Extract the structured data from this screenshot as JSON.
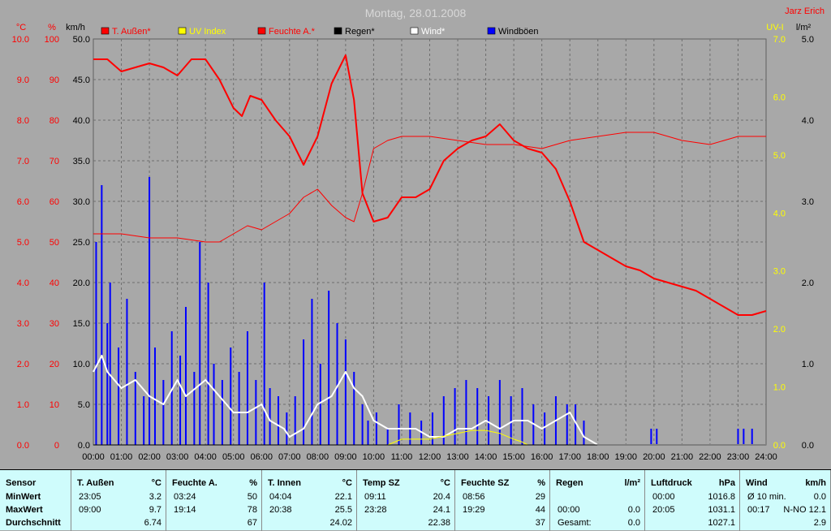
{
  "title": "Montag, 28.01.2008",
  "author": "Jarz Erich",
  "legend": [
    {
      "label": "T. Außen*",
      "color": "#ff0000",
      "text_color": "#ff0000"
    },
    {
      "label": "UV Index",
      "color": "#ffff00",
      "text_color": "#ffff00"
    },
    {
      "label": "Feuchte A.*",
      "color": "#ff0000",
      "text_color": "#ff0000"
    },
    {
      "label": "Regen*",
      "color": "#000000",
      "text_color": "#000000"
    },
    {
      "label": "Wind*",
      "color": "#ffffff",
      "text_color": "#ffffff"
    },
    {
      "label": "Windböen",
      "color": "#0000ff",
      "text_color": "#000000"
    }
  ],
  "axes": {
    "temp": {
      "unit": "°C",
      "ticks": [
        "10.0",
        "9.0",
        "8.0",
        "7.0",
        "6.0",
        "5.0",
        "4.0",
        "3.0",
        "2.0",
        "1.0",
        "0.0"
      ],
      "color": "#ff0000"
    },
    "humidity": {
      "unit": "%",
      "ticks": [
        "100",
        "90",
        "80",
        "70",
        "60",
        "50",
        "40",
        "30",
        "20",
        "10",
        "0"
      ],
      "color": "#ff0000"
    },
    "wind": {
      "unit": "km/h",
      "ticks": [
        "50.0",
        "45.0",
        "40.0",
        "35.0",
        "30.0",
        "25.0",
        "20.0",
        "15.0",
        "10.0",
        "5.0",
        "0.0"
      ],
      "color": "#000000"
    },
    "uv": {
      "unit": "UV-I",
      "ticks": [
        "7.0",
        "6.0",
        "5.0",
        "4.0",
        "3.0",
        "2.0",
        "1.0",
        "0.0"
      ],
      "color": "#ffff00"
    },
    "rain": {
      "unit": "l/m²",
      "ticks": [
        "5.0",
        "4.0",
        "3.0",
        "2.0",
        "1.0",
        "0.0"
      ],
      "color": "#000000"
    },
    "time": [
      "00:00",
      "01:00",
      "02:00",
      "03:00",
      "04:00",
      "05:00",
      "06:00",
      "07:00",
      "08:00",
      "09:00",
      "10:00",
      "11:00",
      "12:00",
      "13:00",
      "14:00",
      "15:00",
      "16:00",
      "17:00",
      "18:00",
      "19:00",
      "20:00",
      "21:00",
      "22:00",
      "23:00",
      "24:00"
    ]
  },
  "chart_data": {
    "type": "line",
    "title": "Montag, 28.01.2008",
    "x_unit": "hours",
    "xlim": [
      0,
      24
    ],
    "grid": true,
    "legend_position": "top",
    "series": [
      {
        "name": "T. Außen*",
        "axis": "°C",
        "ylim": [
          0,
          10
        ],
        "color": "#ff0000",
        "width": 2,
        "x": [
          0,
          0.5,
          1,
          1.5,
          2,
          2.5,
          3,
          3.5,
          4,
          4.5,
          5,
          5.3,
          5.6,
          6,
          6.5,
          7,
          7.5,
          8,
          8.5,
          9,
          9.3,
          9.6,
          10,
          10.5,
          11,
          11.5,
          12,
          12.5,
          13,
          13.5,
          14,
          14.5,
          15,
          15.5,
          16,
          16.5,
          17,
          17.5,
          18,
          18.5,
          19,
          19.5,
          20,
          20.5,
          21,
          21.5,
          22,
          22.5,
          23,
          23.5,
          24
        ],
        "y": [
          9.5,
          9.5,
          9.2,
          9.3,
          9.4,
          9.3,
          9.1,
          9.5,
          9.5,
          9.0,
          8.3,
          8.1,
          8.6,
          8.5,
          8.0,
          7.6,
          6.9,
          7.6,
          8.9,
          9.6,
          8.5,
          6.2,
          5.5,
          5.6,
          6.1,
          6.1,
          6.3,
          7.0,
          7.3,
          7.5,
          7.6,
          7.9,
          7.5,
          7.3,
          7.2,
          6.8,
          6.0,
          5.0,
          4.8,
          4.6,
          4.4,
          4.3,
          4.1,
          4.0,
          3.9,
          3.8,
          3.6,
          3.4,
          3.2,
          3.2,
          3.3
        ]
      },
      {
        "name": "Feuchte A.*",
        "axis": "%",
        "ylim": [
          0,
          100
        ],
        "color": "#ff0000",
        "width": 1,
        "x": [
          0,
          1,
          2,
          3,
          4,
          4.5,
          5,
          5.5,
          6,
          6.5,
          7,
          7.5,
          8,
          8.5,
          9,
          9.3,
          9.6,
          10,
          10.5,
          11,
          12,
          13,
          14,
          15,
          16,
          17,
          18,
          19,
          20,
          21,
          22,
          23,
          23.5,
          24
        ],
        "y": [
          52,
          52,
          51,
          51,
          50,
          50,
          52,
          54,
          53,
          55,
          57,
          61,
          63,
          59,
          56,
          55,
          62,
          73,
          75,
          76,
          76,
          75,
          74,
          74,
          73,
          75,
          76,
          77,
          77,
          75,
          74,
          76,
          76,
          76
        ]
      },
      {
        "name": "Windböen",
        "axis": "km/h",
        "ylim": [
          0,
          50
        ],
        "color": "#0000ff",
        "width": 2,
        "style": "bars",
        "x": [
          0.1,
          0.3,
          0.5,
          0.6,
          0.9,
          1.2,
          1.5,
          1.8,
          2.0,
          2.2,
          2.5,
          2.8,
          3.1,
          3.3,
          3.6,
          3.8,
          4.1,
          4.3,
          4.6,
          4.9,
          5.2,
          5.5,
          5.8,
          6.1,
          6.3,
          6.6,
          6.9,
          7.2,
          7.5,
          7.8,
          8.1,
          8.4,
          8.7,
          9.0,
          9.3,
          9.6,
          9.8,
          10.1,
          10.5,
          10.9,
          11.3,
          11.7,
          12.1,
          12.5,
          12.9,
          13.3,
          13.7,
          14.1,
          14.5,
          14.9,
          15.3,
          15.7,
          16.1,
          16.5,
          16.9,
          17.2,
          17.5,
          19.9,
          20.1,
          23.0,
          23.2,
          23.5
        ],
        "y": [
          25,
          32,
          15,
          20,
          12,
          18,
          9,
          6,
          33,
          12,
          8,
          14,
          11,
          17,
          9,
          25,
          20,
          10,
          8,
          12,
          9,
          14,
          8,
          20,
          7,
          6,
          4,
          6,
          13,
          18,
          10,
          19,
          15,
          13,
          9,
          5,
          3,
          4,
          2,
          5,
          4,
          3,
          4,
          6,
          7,
          8,
          7,
          6,
          8,
          6,
          7,
          5,
          4,
          6,
          5,
          5,
          3,
          2,
          2,
          2,
          2,
          2
        ]
      },
      {
        "name": "Wind*",
        "axis": "km/h",
        "ylim": [
          0,
          50
        ],
        "color": "#ffffff",
        "width": 2,
        "x": [
          0,
          0.3,
          0.5,
          1,
          1.5,
          2,
          2.5,
          3,
          3.3,
          4,
          4.5,
          5,
          5.5,
          6,
          6.3,
          6.8,
          7,
          7.5,
          8,
          8.5,
          9,
          9.3,
          9.6,
          10,
          10.5,
          11,
          11.5,
          12,
          12.5,
          13,
          13.5,
          14,
          14.5,
          15,
          15.5,
          16,
          16.5,
          17,
          17.5,
          18,
          19.5,
          20.5,
          23,
          23.5,
          24
        ],
        "y": [
          9,
          11,
          9,
          7,
          8,
          6,
          5,
          8,
          6,
          8,
          6,
          4,
          4,
          5,
          3,
          2,
          1,
          2,
          5,
          6,
          9,
          7,
          6,
          3,
          2,
          2,
          2,
          1,
          1,
          2,
          2,
          3,
          2,
          3,
          3,
          2,
          3,
          4,
          1,
          0,
          0,
          0,
          0,
          0,
          0
        ]
      },
      {
        "name": "UV Index",
        "axis": "UV-I",
        "ylim": [
          0,
          7
        ],
        "color": "#ffff00",
        "width": 1,
        "x": [
          0,
          10.5,
          11,
          11.5,
          12,
          12.5,
          13,
          13.5,
          14,
          14.5,
          15,
          15.3,
          15.5,
          24
        ],
        "y": [
          0,
          0,
          0.1,
          0.1,
          0.1,
          0.15,
          0.2,
          0.25,
          0.25,
          0.2,
          0.1,
          0.05,
          0,
          0
        ]
      },
      {
        "name": "Regen*",
        "axis": "l/m²",
        "ylim": [
          0,
          5
        ],
        "color": "#000000",
        "width": 1,
        "x": [
          0,
          24
        ],
        "y": [
          0,
          0
        ]
      }
    ]
  },
  "stats": {
    "columns": [
      {
        "name": "sensor",
        "header": "Sensor",
        "unit": "",
        "rows": [
          {
            "t": "MinWert",
            "v": ""
          },
          {
            "t": "MaxWert",
            "v": ""
          },
          {
            "t": "Durchschnitt",
            "v": ""
          }
        ]
      },
      {
        "name": "t-aussen",
        "header": "T. Außen",
        "unit": "°C",
        "rows": [
          {
            "t": "23:05",
            "v": "3.2"
          },
          {
            "t": "09:00",
            "v": "9.7"
          },
          {
            "t": "",
            "v": "6.74"
          }
        ]
      },
      {
        "name": "feuchte-a",
        "header": "Feuchte A.",
        "unit": "%",
        "rows": [
          {
            "t": "03:24",
            "v": "50"
          },
          {
            "t": "19:14",
            "v": "78"
          },
          {
            "t": "",
            "v": "67"
          }
        ]
      },
      {
        "name": "t-innen",
        "header": "T. Innen",
        "unit": "°C",
        "rows": [
          {
            "t": "04:04",
            "v": "22.1"
          },
          {
            "t": "20:38",
            "v": "25.5"
          },
          {
            "t": "",
            "v": "24.02"
          }
        ]
      },
      {
        "name": "temp-sz",
        "header": "Temp SZ",
        "unit": "°C",
        "rows": [
          {
            "t": "09:11",
            "v": "20.4"
          },
          {
            "t": "23:28",
            "v": "24.1"
          },
          {
            "t": "",
            "v": "22.38"
          }
        ]
      },
      {
        "name": "feuchte-sz",
        "header": "Feuchte SZ",
        "unit": "%",
        "rows": [
          {
            "t": "08:56",
            "v": "29"
          },
          {
            "t": "19:29",
            "v": "44"
          },
          {
            "t": "",
            "v": "37"
          }
        ]
      },
      {
        "name": "regen",
        "header": "Regen",
        "unit": "l/m²",
        "rows": [
          {
            "t": "",
            "v": ""
          },
          {
            "t": "00:00",
            "v": "0.0"
          },
          {
            "t": "Gesamt:",
            "v": "0.0"
          }
        ]
      },
      {
        "name": "luftdruck",
        "header": "Luftdruck",
        "unit": "hPa",
        "rows": [
          {
            "t": "00:00",
            "v": "1016.8"
          },
          {
            "t": "20:05",
            "v": "1031.1"
          },
          {
            "t": "",
            "v": "1027.1"
          }
        ]
      },
      {
        "name": "wind",
        "header": "Wind",
        "unit": "km/h",
        "rows": [
          {
            "t": "Ø 10 min.",
            "v": "0.0"
          },
          {
            "t": "00:17",
            "v": "N-NO 12.1"
          },
          {
            "t": "",
            "v": "2.9"
          }
        ]
      }
    ]
  }
}
